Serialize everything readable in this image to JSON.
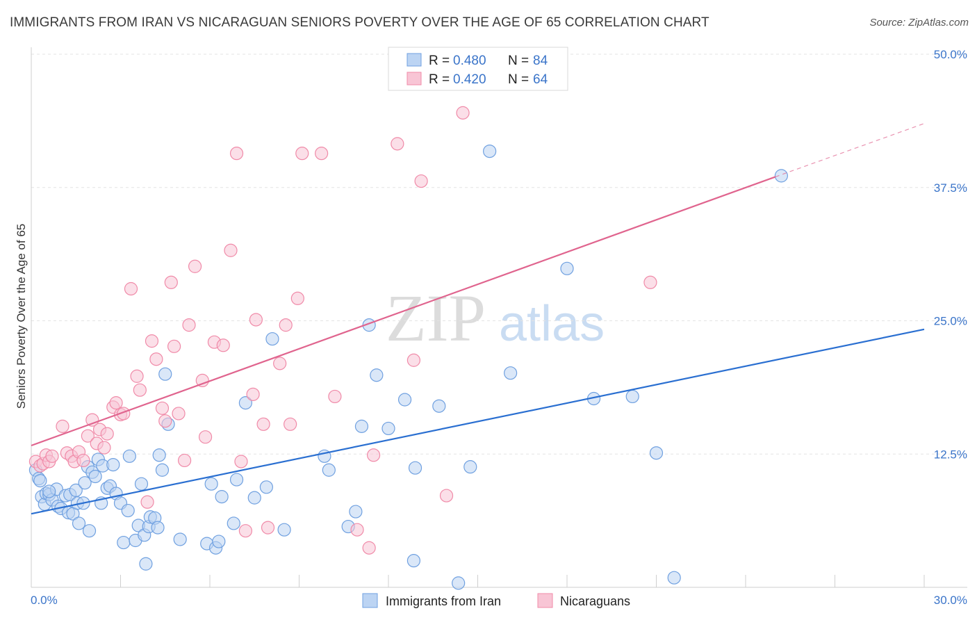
{
  "title": "IMMIGRANTS FROM IRAN VS NICARAGUAN SENIORS POVERTY OVER THE AGE OF 65 CORRELATION CHART",
  "source": "Source: ZipAtlas.com",
  "watermark": {
    "zip": "ZIP",
    "atlas": "atlas"
  },
  "chart_data": {
    "type": "scatter",
    "xlabel": "",
    "ylabel": "Seniors Poverty Over the Age of 65",
    "xlim": [
      0,
      30
    ],
    "ylim": [
      0,
      50
    ],
    "x_tick_labels": [
      "0.0%",
      "30.0%"
    ],
    "y_ticks": [
      12.5,
      25.0,
      37.5,
      50.0
    ],
    "y_tick_labels": [
      "12.5%",
      "25.0%",
      "37.5%",
      "50.0%"
    ],
    "grid": true,
    "legend_position": "top-center",
    "legend": [
      {
        "r_label": "R = ",
        "r_value": "0.480",
        "n_label": "N = ",
        "n_value": "84"
      },
      {
        "r_label": "R = ",
        "r_value": "0.420",
        "n_label": "N = ",
        "n_value": "64"
      }
    ],
    "series": [
      {
        "name": "Immigrants from Iran",
        "color": "#6fa0e0",
        "fill": "#bcd4f3",
        "line_color": "#2a6fd1",
        "trendline": {
          "x0": 0,
          "y0": 6.9,
          "x1": 30,
          "y1": 24.2
        },
        "points": [
          [
            0.15,
            11.0
          ],
          [
            0.25,
            10.2
          ],
          [
            0.3,
            10.0
          ],
          [
            0.35,
            8.5
          ],
          [
            0.45,
            7.8
          ],
          [
            0.5,
            8.8
          ],
          [
            0.6,
            8.7
          ],
          [
            0.7,
            8.2
          ],
          [
            0.85,
            9.2
          ],
          [
            0.9,
            7.6
          ],
          [
            1.0,
            7.4
          ],
          [
            1.15,
            8.6
          ],
          [
            1.25,
            7.0
          ],
          [
            1.3,
            8.7
          ],
          [
            1.4,
            6.9
          ],
          [
            1.5,
            9.1
          ],
          [
            1.55,
            7.9
          ],
          [
            1.6,
            6.0
          ],
          [
            1.75,
            7.9
          ],
          [
            1.8,
            9.8
          ],
          [
            1.9,
            11.3
          ],
          [
            1.95,
            5.3
          ],
          [
            2.05,
            10.8
          ],
          [
            2.15,
            10.4
          ],
          [
            2.25,
            12.0
          ],
          [
            2.35,
            7.9
          ],
          [
            2.4,
            11.4
          ],
          [
            2.55,
            9.3
          ],
          [
            2.65,
            9.5
          ],
          [
            2.75,
            11.5
          ],
          [
            2.85,
            8.8
          ],
          [
            3.0,
            7.9
          ],
          [
            3.1,
            4.2
          ],
          [
            3.25,
            7.2
          ],
          [
            3.3,
            12.3
          ],
          [
            3.5,
            4.4
          ],
          [
            3.6,
            5.8
          ],
          [
            3.7,
            9.7
          ],
          [
            3.8,
            4.9
          ],
          [
            3.85,
            2.2
          ],
          [
            3.95,
            5.7
          ],
          [
            4.0,
            6.6
          ],
          [
            4.15,
            6.5
          ],
          [
            4.25,
            5.6
          ],
          [
            4.3,
            12.4
          ],
          [
            4.4,
            11.0
          ],
          [
            4.5,
            20.0
          ],
          [
            4.6,
            15.3
          ],
          [
            5.0,
            4.5
          ],
          [
            5.9,
            4.1
          ],
          [
            6.05,
            9.7
          ],
          [
            6.2,
            3.7
          ],
          [
            6.3,
            4.3
          ],
          [
            6.4,
            8.5
          ],
          [
            6.8,
            6.0
          ],
          [
            6.9,
            10.1
          ],
          [
            7.2,
            17.3
          ],
          [
            7.5,
            8.4
          ],
          [
            7.9,
            9.4
          ],
          [
            8.1,
            23.3
          ],
          [
            8.5,
            5.4
          ],
          [
            9.85,
            12.3
          ],
          [
            10.0,
            11.0
          ],
          [
            10.65,
            5.7
          ],
          [
            10.9,
            7.1
          ],
          [
            11.1,
            15.1
          ],
          [
            11.35,
            24.6
          ],
          [
            11.6,
            19.9
          ],
          [
            12.0,
            14.9
          ],
          [
            12.55,
            17.6
          ],
          [
            12.85,
            2.5
          ],
          [
            12.9,
            11.2
          ],
          [
            13.7,
            17.0
          ],
          [
            14.35,
            0.4
          ],
          [
            14.75,
            11.3
          ],
          [
            15.4,
            40.9
          ],
          [
            16.1,
            20.1
          ],
          [
            18.0,
            29.9
          ],
          [
            18.9,
            17.7
          ],
          [
            20.2,
            17.9
          ],
          [
            21.0,
            12.6
          ],
          [
            21.6,
            0.9
          ],
          [
            25.2,
            38.6
          ],
          [
            0.6,
            9.0
          ]
        ]
      },
      {
        "name": "Nicaraguans",
        "color": "#f08aa8",
        "fill": "#f8c5d5",
        "line_color": "#e0648e",
        "trendline": {
          "x0": 0,
          "y0": 13.3,
          "x1": 25.0,
          "y1": 38.5
        },
        "trendline_dashed_to": {
          "x": 30,
          "y": 43.5
        },
        "points": [
          [
            0.15,
            11.8
          ],
          [
            0.3,
            11.4
          ],
          [
            0.4,
            11.6
          ],
          [
            0.5,
            12.4
          ],
          [
            0.6,
            11.8
          ],
          [
            0.7,
            12.3
          ],
          [
            1.05,
            15.1
          ],
          [
            1.2,
            12.6
          ],
          [
            1.35,
            12.3
          ],
          [
            1.45,
            11.8
          ],
          [
            1.6,
            12.7
          ],
          [
            1.75,
            11.9
          ],
          [
            1.9,
            14.2
          ],
          [
            2.05,
            15.7
          ],
          [
            2.2,
            13.5
          ],
          [
            2.3,
            14.8
          ],
          [
            2.45,
            13.1
          ],
          [
            2.55,
            14.4
          ],
          [
            2.75,
            16.9
          ],
          [
            2.85,
            17.3
          ],
          [
            3.0,
            16.2
          ],
          [
            3.1,
            16.3
          ],
          [
            3.35,
            28.0
          ],
          [
            3.55,
            19.8
          ],
          [
            3.65,
            18.5
          ],
          [
            3.9,
            8.0
          ],
          [
            4.05,
            23.1
          ],
          [
            4.2,
            21.4
          ],
          [
            4.4,
            16.8
          ],
          [
            4.5,
            15.6
          ],
          [
            4.7,
            28.6
          ],
          [
            4.8,
            22.6
          ],
          [
            4.95,
            16.3
          ],
          [
            5.15,
            11.9
          ],
          [
            5.3,
            24.6
          ],
          [
            5.5,
            30.1
          ],
          [
            5.75,
            19.4
          ],
          [
            5.85,
            14.1
          ],
          [
            6.15,
            23.0
          ],
          [
            6.45,
            22.7
          ],
          [
            6.7,
            31.6
          ],
          [
            6.9,
            40.7
          ],
          [
            7.05,
            11.8
          ],
          [
            7.2,
            5.3
          ],
          [
            7.45,
            18.1
          ],
          [
            7.55,
            25.1
          ],
          [
            7.8,
            15.3
          ],
          [
            7.95,
            5.6
          ],
          [
            8.35,
            21.0
          ],
          [
            8.55,
            24.6
          ],
          [
            8.7,
            15.3
          ],
          [
            8.95,
            27.1
          ],
          [
            9.1,
            40.7
          ],
          [
            9.75,
            40.7
          ],
          [
            10.2,
            17.9
          ],
          [
            10.95,
            5.4
          ],
          [
            11.35,
            3.7
          ],
          [
            11.5,
            12.4
          ],
          [
            12.3,
            41.6
          ],
          [
            12.85,
            21.3
          ],
          [
            13.1,
            38.1
          ],
          [
            13.95,
            8.6
          ],
          [
            14.5,
            44.5
          ],
          [
            20.8,
            28.6
          ]
        ]
      }
    ]
  },
  "bottom_legend": [
    "Immigrants from Iran",
    "Nicaraguans"
  ]
}
